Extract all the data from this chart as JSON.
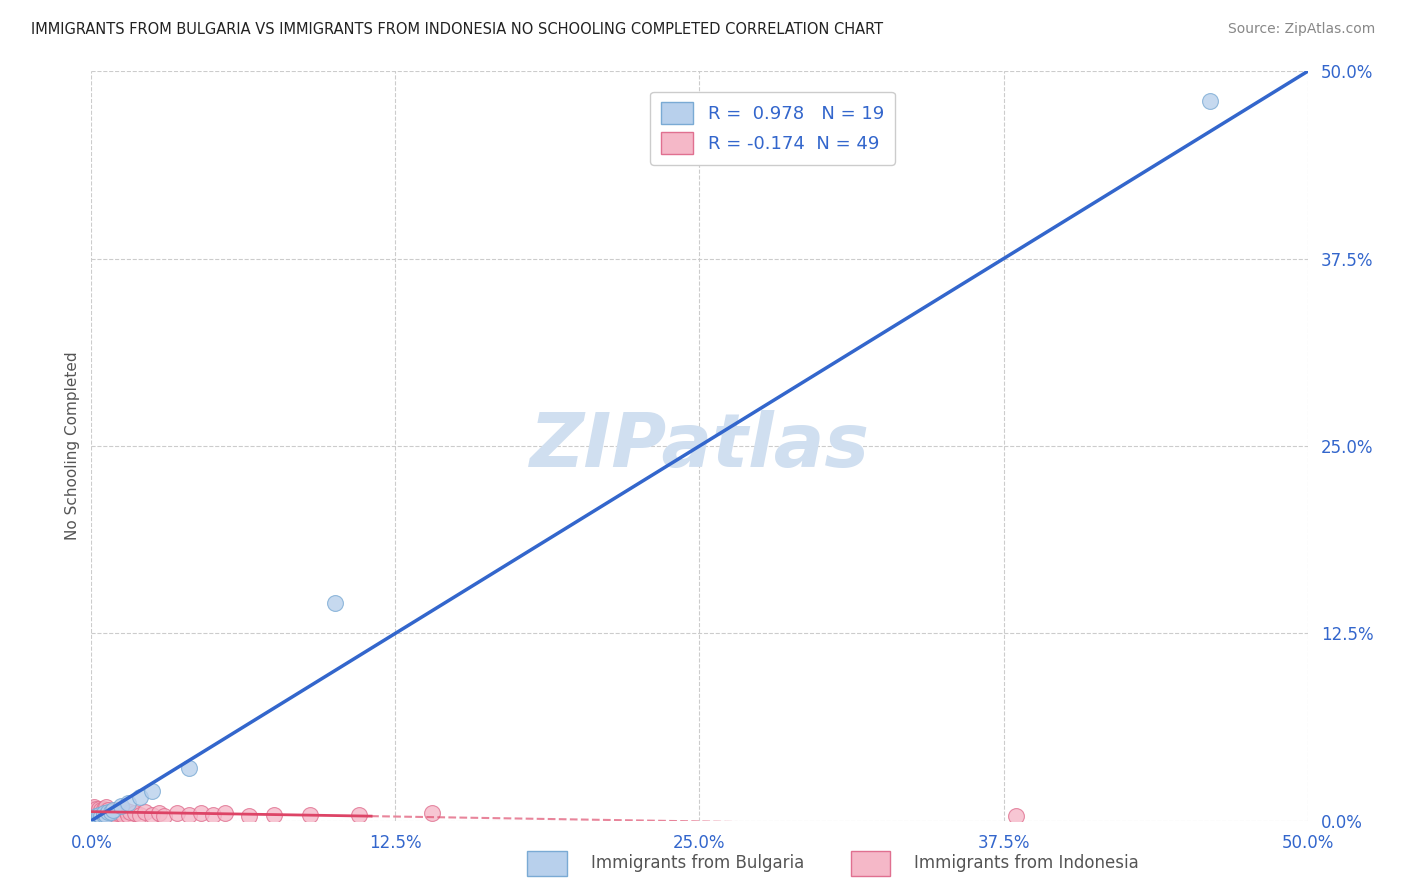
{
  "title": "IMMIGRANTS FROM BULGARIA VS IMMIGRANTS FROM INDONESIA NO SCHOOLING COMPLETED CORRELATION CHART",
  "source": "Source: ZipAtlas.com",
  "ylabel": "No Schooling Completed",
  "xlim": [
    0.0,
    0.5
  ],
  "ylim": [
    0.0,
    0.5
  ],
  "xticks": [
    0.0,
    0.125,
    0.25,
    0.375,
    0.5
  ],
  "yticks": [
    0.0,
    0.125,
    0.25,
    0.375,
    0.5
  ],
  "xtick_labels": [
    "0.0%",
    "12.5%",
    "25.0%",
    "37.5%",
    "50.0%"
  ],
  "ytick_labels": [
    "0.0%",
    "12.5%",
    "25.0%",
    "37.5%",
    "50.0%"
  ],
  "bulgaria_fill": "#b8d0ec",
  "bulgaria_edge": "#7aaad4",
  "indonesia_fill": "#f5b8c8",
  "indonesia_edge": "#e07090",
  "bulgaria_line_color": "#3366cc",
  "indonesia_line_color": "#dd4466",
  "r_bulgaria": 0.978,
  "n_bulgaria": 19,
  "r_indonesia": -0.174,
  "n_indonesia": 49,
  "legend_label_bulgaria": "Immigrants from Bulgaria",
  "legend_label_indonesia": "Immigrants from Indonesia",
  "watermark": "ZIPatlas",
  "watermark_color": "#d0dff0",
  "bg_color": "#ffffff",
  "grid_color": "#cccccc",
  "title_color": "#222222",
  "source_color": "#888888",
  "tick_color": "#3366cc",
  "ylabel_color": "#555555",
  "bulgaria_line_x": [
    0.0,
    0.5
  ],
  "bulgaria_line_y": [
    0.0,
    0.5
  ],
  "indonesia_line_start_x": 0.0,
  "indonesia_line_start_y": 0.006,
  "indonesia_line_solid_end_x": 0.115,
  "indonesia_line_solid_end_y": 0.003,
  "indonesia_line_end_x": 0.5,
  "indonesia_line_end_y": -0.004,
  "scatter_size": 130,
  "bulgaria_points_x": [
    0.001,
    0.002,
    0.002,
    0.003,
    0.003,
    0.004,
    0.005,
    0.005,
    0.006,
    0.007,
    0.008,
    0.009,
    0.012,
    0.015,
    0.02,
    0.025,
    0.04,
    0.1,
    0.46
  ],
  "bulgaria_points_y": [
    0.001,
    0.002,
    0.003,
    0.002,
    0.004,
    0.003,
    0.004,
    0.005,
    0.004,
    0.006,
    0.006,
    0.007,
    0.01,
    0.012,
    0.016,
    0.02,
    0.035,
    0.145,
    0.48
  ],
  "indonesia_points_x": [
    0.0,
    0.0,
    0.001,
    0.001,
    0.001,
    0.002,
    0.002,
    0.002,
    0.003,
    0.003,
    0.003,
    0.004,
    0.004,
    0.005,
    0.005,
    0.005,
    0.006,
    0.006,
    0.006,
    0.007,
    0.007,
    0.008,
    0.008,
    0.009,
    0.01,
    0.01,
    0.011,
    0.012,
    0.013,
    0.014,
    0.015,
    0.016,
    0.018,
    0.02,
    0.022,
    0.025,
    0.028,
    0.03,
    0.035,
    0.04,
    0.045,
    0.05,
    0.055,
    0.065,
    0.075,
    0.09,
    0.11,
    0.14,
    0.38
  ],
  "indonesia_points_y": [
    0.005,
    0.008,
    0.004,
    0.006,
    0.009,
    0.003,
    0.006,
    0.008,
    0.004,
    0.006,
    0.008,
    0.005,
    0.007,
    0.003,
    0.006,
    0.008,
    0.004,
    0.007,
    0.009,
    0.004,
    0.007,
    0.004,
    0.006,
    0.005,
    0.003,
    0.007,
    0.005,
    0.006,
    0.004,
    0.007,
    0.004,
    0.006,
    0.005,
    0.004,
    0.006,
    0.004,
    0.005,
    0.003,
    0.005,
    0.004,
    0.005,
    0.004,
    0.005,
    0.003,
    0.004,
    0.004,
    0.004,
    0.005,
    0.003
  ]
}
